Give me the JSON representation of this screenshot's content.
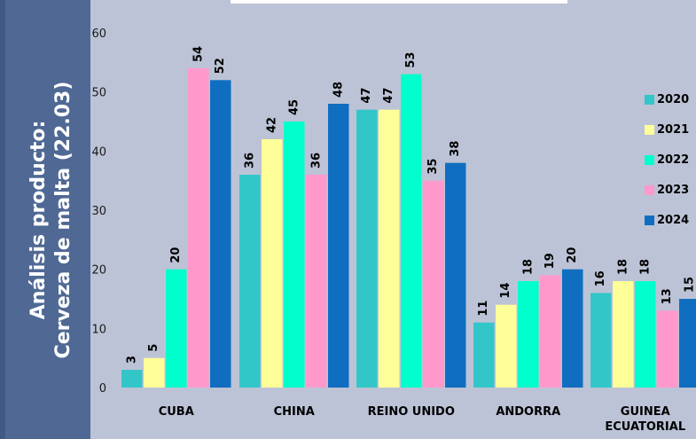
{
  "side_panel": {
    "title_line1": "Análisis producto:",
    "title_line2": "Cerveza de malta (22.03)"
  },
  "colors": {
    "2020": "#33c6c8",
    "2021": "#ffff99",
    "2022": "#00ffcc",
    "2023": "#ff99cc",
    "2024": "#0f6ec0"
  },
  "chart_data": {
    "type": "bar",
    "categories": [
      "CUBA",
      "CHINA",
      "REINO UNIDO",
      "ANDORRA",
      "GUINEA ECUATORIAL"
    ],
    "category_lines": [
      [
        "CUBA"
      ],
      [
        "CHINA"
      ],
      [
        "REINO UNIDO"
      ],
      [
        "ANDORRA"
      ],
      [
        "GUINEA",
        "ECUATORIAL"
      ]
    ],
    "series": [
      {
        "name": "2020",
        "values": [
          3,
          36,
          47,
          11,
          16
        ]
      },
      {
        "name": "2021",
        "values": [
          5,
          42,
          47,
          14,
          18
        ]
      },
      {
        "name": "2022",
        "values": [
          20,
          45,
          53,
          18,
          18
        ]
      },
      {
        "name": "2023",
        "values": [
          54,
          36,
          35,
          19,
          13
        ]
      },
      {
        "name": "2024",
        "values": [
          52,
          48,
          38,
          20,
          15
        ]
      }
    ],
    "yticks": [
      0,
      10,
      20,
      30,
      40,
      50,
      60
    ],
    "ytick_labels": [
      "0",
      "10",
      "20",
      "30",
      "40",
      "50",
      "60"
    ],
    "ylim": [
      0,
      60
    ],
    "grid": false,
    "legend_position": "right"
  }
}
